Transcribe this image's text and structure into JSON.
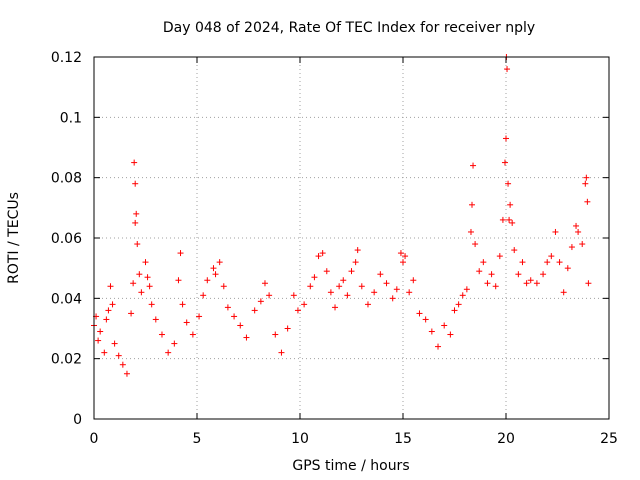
{
  "chart_data": {
    "type": "scatter",
    "title": "Day 048 of 2024, Rate Of TEC Index for receiver nply",
    "xlabel": "GPS time / hours",
    "ylabel": "ROTI / TECUs",
    "xlim": [
      0,
      25
    ],
    "ylim": [
      0,
      0.12
    ],
    "xticks": [
      0,
      5,
      10,
      15,
      20,
      25
    ],
    "xtick_labels": [
      "0",
      "5",
      "10",
      "15",
      "20",
      "25"
    ],
    "yticks": [
      0,
      0.02,
      0.04,
      0.06,
      0.08,
      0.1,
      0.12
    ],
    "ytick_labels": [
      "0",
      "0.02",
      "0.04",
      "0.06",
      "0.08",
      "0.1",
      "0.12"
    ],
    "grid": true,
    "marker": "+",
    "marker_color": "#ff0000",
    "series": [
      {
        "name": "ROTI",
        "points": [
          [
            0.0,
            0.031
          ],
          [
            0.1,
            0.034
          ],
          [
            0.2,
            0.026
          ],
          [
            0.3,
            0.029
          ],
          [
            0.5,
            0.022
          ],
          [
            0.6,
            0.033
          ],
          [
            0.7,
            0.036
          ],
          [
            0.8,
            0.044
          ],
          [
            0.9,
            0.038
          ],
          [
            1.0,
            0.025
          ],
          [
            1.2,
            0.021
          ],
          [
            1.4,
            0.018
          ],
          [
            1.6,
            0.015
          ],
          [
            1.8,
            0.035
          ],
          [
            1.9,
            0.045
          ],
          [
            1.95,
            0.085
          ],
          [
            2.0,
            0.078
          ],
          [
            2.0,
            0.065
          ],
          [
            2.05,
            0.068
          ],
          [
            2.1,
            0.058
          ],
          [
            2.2,
            0.048
          ],
          [
            2.3,
            0.042
          ],
          [
            2.5,
            0.052
          ],
          [
            2.6,
            0.047
          ],
          [
            2.7,
            0.044
          ],
          [
            2.8,
            0.038
          ],
          [
            3.0,
            0.033
          ],
          [
            3.3,
            0.028
          ],
          [
            3.6,
            0.022
          ],
          [
            3.9,
            0.025
          ],
          [
            4.1,
            0.046
          ],
          [
            4.2,
            0.055
          ],
          [
            4.3,
            0.038
          ],
          [
            4.5,
            0.032
          ],
          [
            4.8,
            0.028
          ],
          [
            5.1,
            0.034
          ],
          [
            5.3,
            0.041
          ],
          [
            5.5,
            0.046
          ],
          [
            5.8,
            0.05
          ],
          [
            5.9,
            0.048
          ],
          [
            6.1,
            0.052
          ],
          [
            6.3,
            0.044
          ],
          [
            6.5,
            0.037
          ],
          [
            6.8,
            0.034
          ],
          [
            7.1,
            0.031
          ],
          [
            7.4,
            0.027
          ],
          [
            7.8,
            0.036
          ],
          [
            8.1,
            0.039
          ],
          [
            8.3,
            0.045
          ],
          [
            8.5,
            0.041
          ],
          [
            8.8,
            0.028
          ],
          [
            9.1,
            0.022
          ],
          [
            9.4,
            0.03
          ],
          [
            9.7,
            0.041
          ],
          [
            9.9,
            0.036
          ],
          [
            10.2,
            0.038
          ],
          [
            10.5,
            0.044
          ],
          [
            10.7,
            0.047
          ],
          [
            10.9,
            0.054
          ],
          [
            11.1,
            0.055
          ],
          [
            11.3,
            0.049
          ],
          [
            11.5,
            0.042
          ],
          [
            11.7,
            0.037
          ],
          [
            11.9,
            0.044
          ],
          [
            12.1,
            0.046
          ],
          [
            12.3,
            0.041
          ],
          [
            12.5,
            0.049
          ],
          [
            12.7,
            0.052
          ],
          [
            12.8,
            0.056
          ],
          [
            13.0,
            0.044
          ],
          [
            13.3,
            0.038
          ],
          [
            13.6,
            0.042
          ],
          [
            13.9,
            0.048
          ],
          [
            14.2,
            0.045
          ],
          [
            14.5,
            0.04
          ],
          [
            14.7,
            0.043
          ],
          [
            14.9,
            0.055
          ],
          [
            15.0,
            0.052
          ],
          [
            15.1,
            0.054
          ],
          [
            15.3,
            0.042
          ],
          [
            15.5,
            0.046
          ],
          [
            15.8,
            0.035
          ],
          [
            16.1,
            0.033
          ],
          [
            16.4,
            0.029
          ],
          [
            16.7,
            0.024
          ],
          [
            17.0,
            0.031
          ],
          [
            17.3,
            0.028
          ],
          [
            17.5,
            0.036
          ],
          [
            17.7,
            0.038
          ],
          [
            17.9,
            0.041
          ],
          [
            18.1,
            0.043
          ],
          [
            18.3,
            0.062
          ],
          [
            18.35,
            0.071
          ],
          [
            18.4,
            0.084
          ],
          [
            18.5,
            0.058
          ],
          [
            18.7,
            0.049
          ],
          [
            18.9,
            0.052
          ],
          [
            19.1,
            0.045
          ],
          [
            19.3,
            0.048
          ],
          [
            19.5,
            0.044
          ],
          [
            19.7,
            0.054
          ],
          [
            19.85,
            0.066
          ],
          [
            19.95,
            0.085
          ],
          [
            20.0,
            0.093
          ],
          [
            20.02,
            0.12
          ],
          [
            20.05,
            0.116
          ],
          [
            20.1,
            0.078
          ],
          [
            20.15,
            0.066
          ],
          [
            20.2,
            0.071
          ],
          [
            20.3,
            0.065
          ],
          [
            20.4,
            0.056
          ],
          [
            20.6,
            0.048
          ],
          [
            20.8,
            0.052
          ],
          [
            21.0,
            0.045
          ],
          [
            21.2,
            0.046
          ],
          [
            21.5,
            0.045
          ],
          [
            21.8,
            0.048
          ],
          [
            22.0,
            0.052
          ],
          [
            22.2,
            0.054
          ],
          [
            22.4,
            0.062
          ],
          [
            22.6,
            0.052
          ],
          [
            22.8,
            0.042
          ],
          [
            23.0,
            0.05
          ],
          [
            23.2,
            0.057
          ],
          [
            23.4,
            0.064
          ],
          [
            23.5,
            0.062
          ],
          [
            23.7,
            0.058
          ],
          [
            23.85,
            0.078
          ],
          [
            23.9,
            0.08
          ],
          [
            23.95,
            0.072
          ],
          [
            24.0,
            0.045
          ]
        ]
      }
    ]
  }
}
